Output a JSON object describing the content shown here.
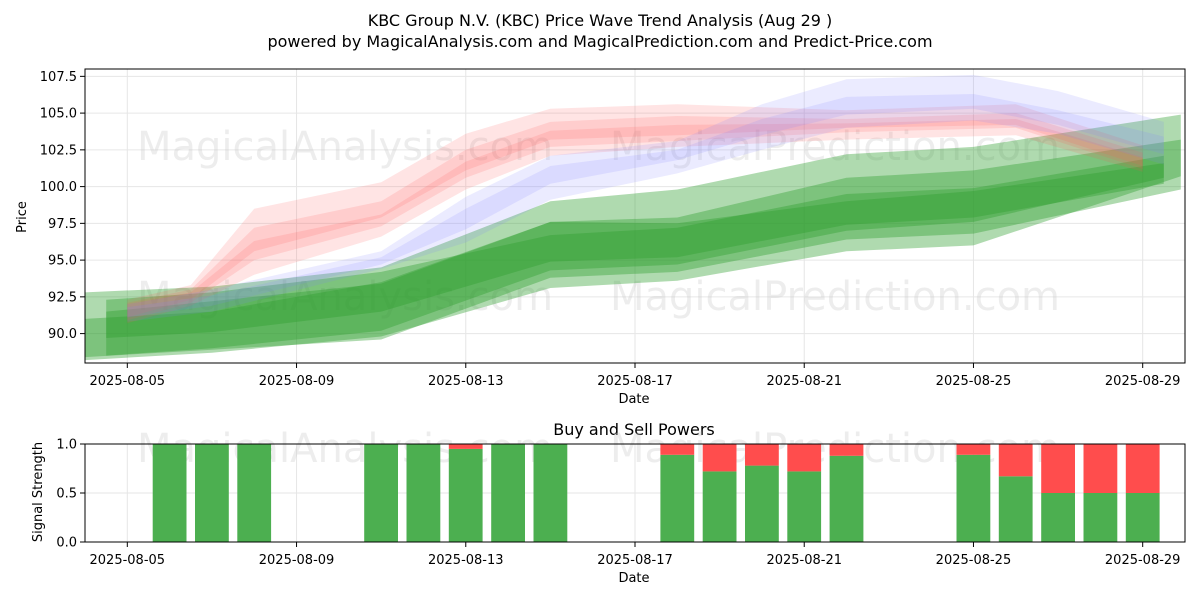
{
  "header": {
    "title_line1": "KBC Group N.V. (KBC) Price Wave Trend Analysis (Aug 29 )",
    "title_line2": "powered by MagicalAnalysis.com and MagicalPrediction.com and Predict-Price.com"
  },
  "watermarks": [
    "MagicalAnalysis.com",
    "MagicalPrediction.com"
  ],
  "colors": {
    "green": "#2e9e2e",
    "red": "#ff5a5a",
    "blue": "#8080ff",
    "buy_bar": "#4caf50",
    "sell_bar": "#ff4d4d",
    "grid": "#e6e6e6"
  },
  "chart_data": [
    {
      "type": "area",
      "title": "",
      "xlabel": "Date",
      "ylabel": "Price",
      "x_ticks": [
        "2025-08-05",
        "2025-08-09",
        "2025-08-13",
        "2025-08-17",
        "2025-08-21",
        "2025-08-25",
        "2025-08-29"
      ],
      "y_ticks": [
        "90.0",
        "92.5",
        "95.0",
        "97.5",
        "100.0",
        "102.5",
        "105.0",
        "107.5"
      ],
      "xlim": [
        "2025-08-04",
        "2025-08-30"
      ],
      "ylim": [
        88.0,
        108.0
      ],
      "grid": true,
      "series": [
        {
          "color": "green",
          "bands": [
            {
              "x": [
                "2025-08-04",
                "2025-08-07",
                "2025-08-11",
                "2025-08-15",
                "2025-08-18",
                "2025-08-22",
                "2025-08-25",
                "2025-08-29.9"
              ],
              "upper": [
                92.8,
                93.2,
                94.5,
                99.0,
                99.8,
                102.2,
                102.7,
                104.9
              ],
              "lower": [
                88.2,
                88.7,
                89.8,
                93.1,
                93.6,
                95.6,
                96.0,
                100.7
              ]
            },
            {
              "x": [
                "2025-08-04",
                "2025-08-07",
                "2025-08-11",
                "2025-08-15",
                "2025-08-18",
                "2025-08-22",
                "2025-08-25",
                "2025-08-29.9"
              ],
              "upper": [
                91.0,
                91.5,
                93.5,
                97.6,
                97.9,
                100.6,
                101.1,
                103.2
              ],
              "lower": [
                88.4,
                88.9,
                89.6,
                93.8,
                94.2,
                96.4,
                96.8,
                99.8
              ]
            },
            {
              "x": [
                "2025-08-04.5",
                "2025-08-07",
                "2025-08-11",
                "2025-08-15",
                "2025-08-18",
                "2025-08-22",
                "2025-08-25",
                "2025-08-29.5"
              ],
              "upper": [
                92.3,
                92.8,
                94.2,
                96.7,
                97.2,
                99.5,
                99.9,
                102.1
              ],
              "lower": [
                88.5,
                89.0,
                90.2,
                94.3,
                94.7,
                97.0,
                97.6,
                100.6
              ]
            },
            {
              "x": [
                "2025-08-04.5",
                "2025-08-07",
                "2025-08-11",
                "2025-08-15",
                "2025-08-18",
                "2025-08-22",
                "2025-08-25",
                "2025-08-29.5"
              ],
              "upper": [
                91.5,
                92.2,
                93.4,
                97.6,
                97.5,
                99.0,
                99.7,
                101.6
              ],
              "lower": [
                89.7,
                90.1,
                91.5,
                94.9,
                95.2,
                97.4,
                97.9,
                100.2
              ]
            }
          ]
        },
        {
          "color": "red",
          "bands": [
            {
              "x": [
                "2025-08-05",
                "2025-08-06.5",
                "2025-08-08",
                "2025-08-11",
                "2025-08-13",
                "2025-08-15",
                "2025-08-18",
                "2025-08-22",
                "2025-08-26",
                "2025-08-29"
              ],
              "upper": [
                92.3,
                93.3,
                98.5,
                100.3,
                103.6,
                105.3,
                105.6,
                105.2,
                105.6,
                102.8
              ],
              "lower": [
                90.7,
                91.9,
                94.0,
                96.6,
                99.8,
                102.1,
                102.7,
                103.2,
                103.5,
                101.0
              ]
            },
            {
              "x": [
                "2025-08-05",
                "2025-08-06.5",
                "2025-08-08",
                "2025-08-11",
                "2025-08-13",
                "2025-08-15",
                "2025-08-18",
                "2025-08-22",
                "2025-08-26",
                "2025-08-29"
              ],
              "upper": [
                92.1,
                93.0,
                97.2,
                99.0,
                102.5,
                104.4,
                104.8,
                104.6,
                105.0,
                102.3
              ],
              "lower": [
                90.9,
                92.1,
                95.0,
                97.3,
                100.6,
                102.7,
                103.1,
                103.7,
                104.0,
                101.2
              ]
            },
            {
              "x": [
                "2025-08-05",
                "2025-08-06.5",
                "2025-08-08",
                "2025-08-11",
                "2025-08-13",
                "2025-08-15",
                "2025-08-18",
                "2025-08-22",
                "2025-08-26",
                "2025-08-29"
              ],
              "upper": [
                92.0,
                92.8,
                96.3,
                98.1,
                101.7,
                103.8,
                104.2,
                104.3,
                104.6,
                102.0
              ],
              "lower": [
                91.1,
                92.3,
                95.6,
                97.9,
                101.1,
                103.2,
                103.5,
                104.0,
                104.2,
                101.4
              ]
            }
          ]
        },
        {
          "color": "blue",
          "bands": [
            {
              "x": [
                "2025-08-05",
                "2025-08-07",
                "2025-08-11",
                "2025-08-13",
                "2025-08-15",
                "2025-08-18",
                "2025-08-20",
                "2025-08-22",
                "2025-08-25",
                "2025-08-27",
                "2025-08-29.5"
              ],
              "upper": [
                92.0,
                93.0,
                95.6,
                99.3,
                102.1,
                103.1,
                105.6,
                107.3,
                107.6,
                106.5,
                104.4
              ],
              "lower": [
                90.8,
                91.5,
                94.4,
                96.2,
                99.1,
                100.9,
                102.5,
                104.0,
                104.5,
                103.6,
                101.5
              ]
            },
            {
              "x": [
                "2025-08-05",
                "2025-08-07",
                "2025-08-11",
                "2025-08-13",
                "2025-08-15",
                "2025-08-18",
                "2025-08-20",
                "2025-08-22",
                "2025-08-25",
                "2025-08-27",
                "2025-08-29.5"
              ],
              "upper": [
                91.8,
                92.6,
                95.2,
                98.5,
                101.4,
                102.5,
                104.6,
                106.1,
                106.3,
                105.2,
                103.4
              ],
              "lower": [
                91.1,
                91.9,
                94.7,
                97.1,
                100.2,
                101.8,
                103.5,
                104.9,
                105.3,
                104.2,
                102.2
              ]
            }
          ]
        }
      ]
    },
    {
      "type": "bar",
      "title": "Buy and Sell Powers",
      "xlabel": "Date",
      "ylabel": "Signal Strength",
      "x_ticks": [
        "2025-08-05",
        "2025-08-09",
        "2025-08-13",
        "2025-08-17",
        "2025-08-21",
        "2025-08-25",
        "2025-08-29"
      ],
      "y_ticks": [
        "0.0",
        "0.5",
        "1.0"
      ],
      "xlim": [
        "2025-08-04",
        "2025-08-30"
      ],
      "ylim": [
        0,
        1
      ],
      "series": [
        {
          "name": "buy",
          "color": "buy_bar"
        },
        {
          "name": "sell",
          "color": "sell_bar"
        }
      ],
      "categories": [
        "2025-08-06",
        "2025-08-07",
        "2025-08-08",
        "2025-08-11",
        "2025-08-12",
        "2025-08-13",
        "2025-08-14",
        "2025-08-15",
        "2025-08-18",
        "2025-08-19",
        "2025-08-20",
        "2025-08-21",
        "2025-08-22",
        "2025-08-25",
        "2025-08-26",
        "2025-08-27",
        "2025-08-28",
        "2025-08-29"
      ],
      "buy": [
        1.0,
        1.0,
        1.0,
        1.0,
        1.0,
        0.95,
        1.0,
        1.0,
        0.89,
        0.72,
        0.78,
        0.72,
        0.88,
        0.89,
        0.67,
        0.5,
        0.5,
        0.5
      ],
      "sell": [
        0.0,
        0.0,
        0.0,
        0.0,
        0.0,
        0.05,
        0.0,
        0.0,
        0.11,
        0.28,
        0.22,
        0.28,
        0.12,
        0.11,
        0.33,
        0.5,
        0.5,
        0.5
      ]
    }
  ]
}
